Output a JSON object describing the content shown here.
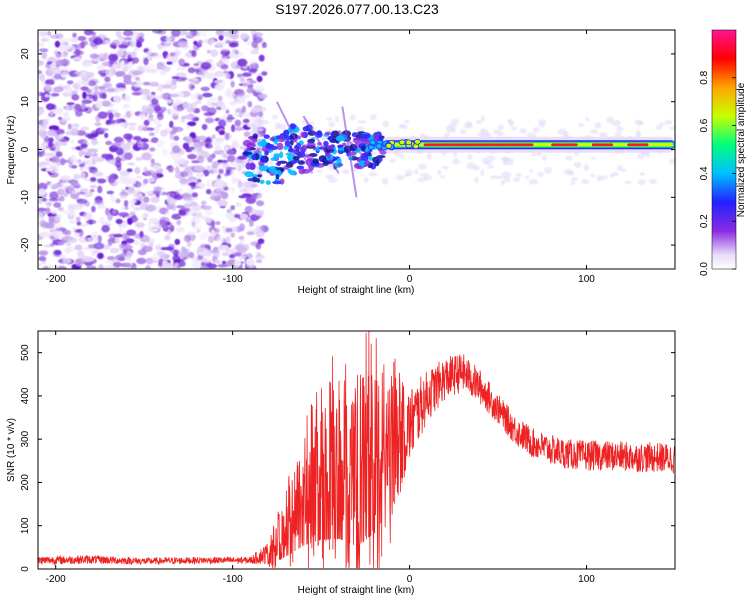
{
  "page_title": "S197.2026.077.00.13.C23",
  "chart_data": [
    {
      "type": "heatmap",
      "title": "S197.2026.077.00.13.C23",
      "xlabel": "Height of straight line (km)",
      "ylabel": "Frequency (Hz)",
      "xlim": [
        -210,
        150
      ],
      "ylim": [
        -25,
        25
      ],
      "xticks": [
        -200,
        -100,
        0,
        100
      ],
      "yticks": [
        -20,
        -10,
        0,
        10,
        20
      ],
      "colorbar": {
        "label": "Normalized spectral amplitude",
        "range": [
          0,
          1
        ],
        "ticks": [
          0.0,
          0.2,
          0.4,
          0.6,
          0.8
        ],
        "tick_labels": [
          "0.0",
          "0.2",
          "0.4",
          "0.6",
          "0.8"
        ],
        "colormap": [
          "#ffffff",
          "#d8c8f4",
          "#8a2be2",
          "#2222ff",
          "#00bfff",
          "#00ff7f",
          "#c8ff00",
          "#ffa500",
          "#ff0000",
          "#ff1493"
        ]
      },
      "regions": [
        {
          "name": "noise",
          "x_range": [
            -210,
            -90
          ],
          "freq_range": [
            -25,
            25
          ],
          "amplitude_range": [
            0.0,
            0.15
          ]
        },
        {
          "name": "transition",
          "x_range": [
            -90,
            -15
          ],
          "freq_range": [
            -8,
            8
          ],
          "amplitude_range": [
            0.1,
            0.5
          ]
        },
        {
          "name": "carrier",
          "x_range": [
            -15,
            150
          ],
          "center_freq": [
            0.5,
            1.5
          ],
          "amplitude_range": [
            0.4,
            1.0
          ]
        }
      ]
    },
    {
      "type": "line",
      "title": "",
      "xlabel": "Height of straight line (km)",
      "ylabel": "SNR (10 * v/v)",
      "xlim": [
        -210,
        150
      ],
      "ylim": [
        0,
        550
      ],
      "xticks": [
        -200,
        -100,
        0,
        100
      ],
      "yticks": [
        0,
        100,
        200,
        300,
        400,
        500
      ],
      "series": [
        {
          "name": "SNR",
          "color": "#ee2222",
          "x": [
            -210,
            -180,
            -150,
            -120,
            -90,
            -78,
            -70,
            -60,
            -50,
            -40,
            -30,
            -20,
            -10,
            0,
            10,
            20,
            30,
            40,
            50,
            60,
            70,
            80,
            90,
            100,
            110,
            120,
            130,
            140,
            150
          ],
          "y": [
            20,
            22,
            18,
            20,
            20,
            40,
            100,
            180,
            230,
            250,
            260,
            280,
            290,
            330,
            400,
            440,
            455,
            420,
            370,
            320,
            290,
            275,
            265,
            262,
            262,
            260,
            258,
            258,
            255
          ],
          "noise_amplitude": [
            10,
            10,
            8,
            8,
            8,
            30,
            80,
            140,
            180,
            200,
            230,
            220,
            160,
            90,
            60,
            50,
            45,
            40,
            35,
            35,
            35,
            35,
            35,
            35,
            35,
            35,
            35,
            35,
            35
          ]
        }
      ]
    }
  ]
}
